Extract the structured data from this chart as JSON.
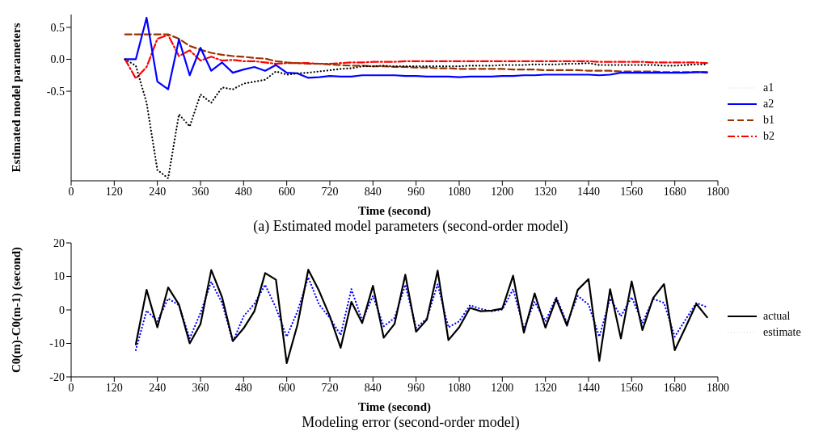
{
  "chart_data": [
    {
      "type": "line",
      "title": "(a) Estimated model parameters (second-order model)",
      "xlabel": "Time (second)",
      "ylabel": "Estimated model parameters",
      "x": [
        150,
        180,
        210,
        240,
        270,
        300,
        330,
        360,
        390,
        420,
        450,
        480,
        510,
        540,
        570,
        600,
        630,
        660,
        690,
        720,
        750,
        780,
        810,
        840,
        870,
        900,
        930,
        960,
        990,
        1020,
        1050,
        1080,
        1110,
        1140,
        1170,
        1200,
        1230,
        1260,
        1290,
        1320,
        1350,
        1380,
        1410,
        1440,
        1470,
        1500,
        1530,
        1560,
        1590,
        1620,
        1650,
        1680,
        1710,
        1740,
        1770
      ],
      "xlim": [
        0,
        1800
      ],
      "xticks": [
        0,
        120,
        240,
        360,
        480,
        600,
        720,
        840,
        960,
        1080,
        1200,
        1320,
        1440,
        1560,
        1680,
        1800
      ],
      "ylim": [
        -1.9,
        0.7
      ],
      "yticks": [
        -0.5,
        {
          "value": 0,
          "label": "0.0"
        },
        0.5
      ],
      "legend": "right",
      "grid": false,
      "series": [
        {
          "name": "a1",
          "color": "#000000",
          "line_style": "dotted",
          "values": [
            0,
            -0.1,
            -0.68,
            -1.73,
            -1.86,
            -0.86,
            -1.05,
            -0.55,
            -0.68,
            -0.44,
            -0.47,
            -0.38,
            -0.35,
            -0.32,
            -0.19,
            -0.24,
            -0.22,
            -0.21,
            -0.19,
            -0.17,
            -0.15,
            -0.14,
            -0.11,
            -0.11,
            -0.1,
            -0.11,
            -0.11,
            -0.11,
            -0.11,
            -0.11,
            -0.11,
            -0.11,
            -0.1,
            -0.1,
            -0.1,
            -0.09,
            -0.09,
            -0.09,
            -0.08,
            -0.08,
            -0.08,
            -0.07,
            -0.07,
            -0.06,
            -0.09,
            -0.09,
            -0.09,
            -0.09,
            -0.09,
            -0.09,
            -0.1,
            -0.1,
            -0.09,
            -0.08,
            -0.08
          ]
        },
        {
          "name": "a2",
          "color": "#0000ff",
          "line_style": "solid",
          "values": [
            0,
            0,
            0.65,
            -0.35,
            -0.47,
            0.31,
            -0.25,
            0.18,
            -0.18,
            -0.05,
            -0.21,
            -0.16,
            -0.12,
            -0.18,
            -0.09,
            -0.21,
            -0.22,
            -0.29,
            -0.28,
            -0.26,
            -0.27,
            -0.27,
            -0.25,
            -0.25,
            -0.25,
            -0.25,
            -0.26,
            -0.26,
            -0.27,
            -0.27,
            -0.27,
            -0.28,
            -0.27,
            -0.27,
            -0.27,
            -0.26,
            -0.26,
            -0.25,
            -0.25,
            -0.24,
            -0.24,
            -0.24,
            -0.24,
            -0.24,
            -0.25,
            -0.24,
            -0.21,
            -0.21,
            -0.21,
            -0.21,
            -0.21,
            -0.21,
            -0.21,
            -0.2,
            -0.2
          ]
        },
        {
          "name": "b1",
          "color": "#993300",
          "line_style": "dashed",
          "values": [
            0.39,
            0.39,
            0.39,
            0.39,
            0.39,
            0.32,
            0.21,
            0.15,
            0.1,
            0.07,
            0.05,
            0.04,
            0.02,
            0.01,
            -0.03,
            -0.05,
            -0.06,
            -0.07,
            -0.07,
            -0.08,
            -0.09,
            -0.1,
            -0.1,
            -0.11,
            -0.11,
            -0.12,
            -0.12,
            -0.13,
            -0.13,
            -0.14,
            -0.14,
            -0.15,
            -0.15,
            -0.15,
            -0.15,
            -0.15,
            -0.16,
            -0.16,
            -0.16,
            -0.17,
            -0.17,
            -0.17,
            -0.17,
            -0.18,
            -0.18,
            -0.18,
            -0.19,
            -0.19,
            -0.19,
            -0.19,
            -0.2,
            -0.2,
            -0.2,
            -0.2,
            -0.21
          ]
        },
        {
          "name": "b2",
          "color": "#ff0000",
          "line_style": "dashdot",
          "values": [
            0,
            -0.3,
            -0.12,
            0.32,
            0.38,
            0.05,
            0.14,
            -0.02,
            0.04,
            -0.02,
            -0.01,
            -0.03,
            -0.03,
            -0.05,
            -0.07,
            -0.06,
            -0.06,
            -0.06,
            -0.07,
            -0.07,
            -0.06,
            -0.05,
            -0.05,
            -0.04,
            -0.04,
            -0.04,
            -0.03,
            -0.03,
            -0.03,
            -0.03,
            -0.03,
            -0.03,
            -0.03,
            -0.03,
            -0.03,
            -0.03,
            -0.03,
            -0.03,
            -0.03,
            -0.03,
            -0.03,
            -0.03,
            -0.03,
            -0.03,
            -0.04,
            -0.04,
            -0.04,
            -0.04,
            -0.04,
            -0.05,
            -0.05,
            -0.05,
            -0.05,
            -0.05,
            -0.06
          ]
        }
      ]
    },
    {
      "type": "line",
      "title": "Modeling error (second-order model)",
      "xlabel": "Time (second)",
      "ylabel": "C0(m)-C0(m-1) (second)",
      "x": [
        180,
        210,
        240,
        270,
        300,
        330,
        360,
        390,
        420,
        450,
        480,
        510,
        540,
        570,
        600,
        630,
        660,
        690,
        720,
        750,
        780,
        810,
        840,
        870,
        900,
        930,
        960,
        990,
        1020,
        1050,
        1080,
        1110,
        1140,
        1170,
        1200,
        1230,
        1260,
        1290,
        1320,
        1350,
        1380,
        1410,
        1440,
        1470,
        1500,
        1530,
        1560,
        1590,
        1620,
        1650,
        1680,
        1710,
        1740,
        1770
      ],
      "xlim": [
        0,
        1800
      ],
      "xticks": [
        0,
        120,
        240,
        360,
        480,
        600,
        720,
        840,
        960,
        1080,
        1200,
        1320,
        1440,
        1560,
        1680,
        1800
      ],
      "ylim": [
        -20,
        20
      ],
      "yticks": [
        -20,
        -10,
        0,
        10,
        20
      ],
      "legend": "right",
      "grid": false,
      "series": [
        {
          "name": "actual",
          "color": "#000000",
          "line_style": "solid",
          "values": [
            -10.3,
            6,
            -5.2,
            6.7,
            1.6,
            -10,
            -4.2,
            11.9,
            3.8,
            -9.3,
            -5.5,
            -0.4,
            11,
            9,
            -15.9,
            -4.4,
            12,
            5.7,
            -1.9,
            -11.3,
            2.4,
            -3.9,
            7.2,
            -8.3,
            -4.2,
            10.5,
            -6.5,
            -2.9,
            11.7,
            -9,
            -5.2,
            0.6,
            -0.4,
            -0.2,
            0.4,
            10.2,
            -6.8,
            4.9,
            -5.3,
            3.3,
            -4.7,
            6,
            9.2,
            -15.2,
            6.2,
            -8.5,
            8.5,
            -6,
            3.6,
            7.7,
            -12,
            -5.2,
            1.8,
            -2.2
          ]
        },
        {
          "name": "estimate",
          "color": "#0000ff",
          "line_style": "dotted",
          "values": [
            -12,
            -0.2,
            -3.4,
            3.4,
            1.4,
            -8.5,
            -0.9,
            8.4,
            2.1,
            -9.5,
            -1.9,
            1.8,
            7.5,
            0.6,
            -8,
            -0.4,
            9.7,
            1.6,
            -2.4,
            -7.5,
            6.2,
            -3.2,
            4.2,
            -4.9,
            -2.4,
            7.5,
            -5.3,
            -2.6,
            7.7,
            -5.2,
            -3.4,
            1.4,
            0.3,
            -0.4,
            0.1,
            6.2,
            -5.5,
            2.4,
            -3.4,
            3.8,
            -3.9,
            4.2,
            1.6,
            -8,
            3.4,
            -1.9,
            3.8,
            -3.9,
            3.3,
            2.1,
            -8,
            -2.9,
            2.1,
            0.8
          ]
        }
      ]
    }
  ]
}
